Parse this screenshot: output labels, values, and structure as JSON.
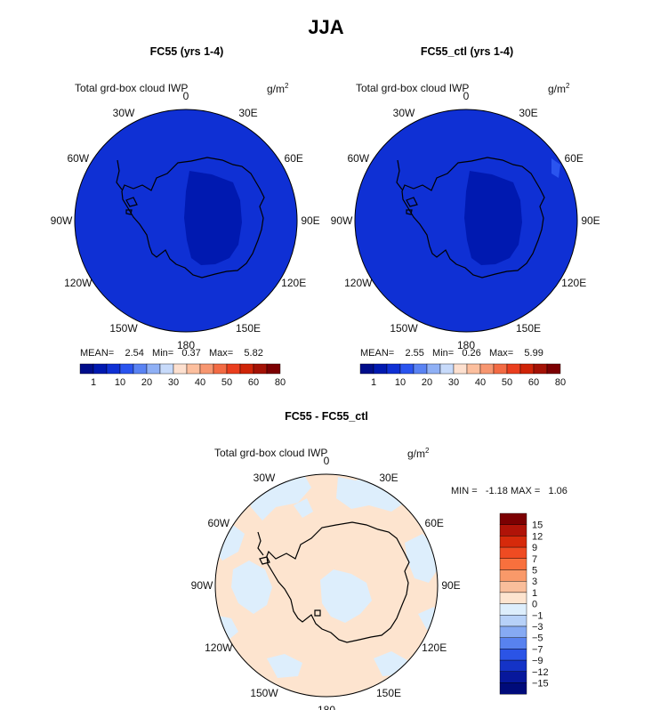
{
  "title": "JJA",
  "panels": [
    {
      "title": "FC55 (yrs 1-4)",
      "variable": "Total grd-box cloud IWP",
      "units": "g/m",
      "units_sup": "2",
      "stats": {
        "mean_label": "MEAN=",
        "mean": "2.54",
        "min_label": "Min=",
        "min": "0.37",
        "max_label": "Max=",
        "max": "5.82"
      }
    },
    {
      "title": "FC55_ctl (yrs 1-4)",
      "variable": "Total grd-box cloud IWP",
      "units": "g/m",
      "units_sup": "2",
      "stats": {
        "mean_label": "MEAN=",
        "mean": "2.55",
        "min_label": "Min=",
        "min": "0.26",
        "max_label": "Max=",
        "max": "5.99"
      }
    },
    {
      "title": "FC55 - FC55_ctl",
      "variable": "Total grd-box cloud IWP",
      "units": "g/m",
      "units_sup": "2",
      "stats": {
        "min_label": "MIN =",
        "min": "-1.18",
        "max_label": "MAX =",
        "max": "1.06"
      }
    }
  ],
  "longitude_labels": [
    "0",
    "30E",
    "60E",
    "90E",
    "120E",
    "150E",
    "180",
    "150W",
    "120W",
    "90W",
    "60W",
    "30W"
  ],
  "colorbar_top": {
    "labels": [
      "1",
      "10",
      "20",
      "30",
      "40",
      "50",
      "60",
      "80"
    ],
    "colors": [
      "#000d8a",
      "#0019b0",
      "#0f30d4",
      "#2a54ef",
      "#5a83f3",
      "#8fb0f5",
      "#c7dafa",
      "#fde0cf",
      "#fcbf9e",
      "#f79670",
      "#f36b44",
      "#ea3e1e",
      "#cf2408",
      "#a41205",
      "#7c0002"
    ]
  },
  "colorbar_diff": {
    "labels": [
      "15",
      "12",
      "9",
      "7",
      "5",
      "3",
      "1",
      "0",
      "−1",
      "−3",
      "−5",
      "−7",
      "−9",
      "−12",
      "−15"
    ],
    "colors": [
      "#7c0002",
      "#b01308",
      "#d62a0b",
      "#ef4b22",
      "#f8703d",
      "#f99969",
      "#f9be9b",
      "#fde4cf",
      "#ddeefc",
      "#b7d1f8",
      "#86aaf3",
      "#5882ef",
      "#2b54e6",
      "#1433c7",
      "#07189c",
      "#000b7a"
    ]
  },
  "map_colors": {
    "ocean_field": "#0f30d4",
    "plateau_field": "#0019b0",
    "diff_base": "#fde4cf",
    "diff_negative": "#ddeefc",
    "coastline": "#000000"
  }
}
